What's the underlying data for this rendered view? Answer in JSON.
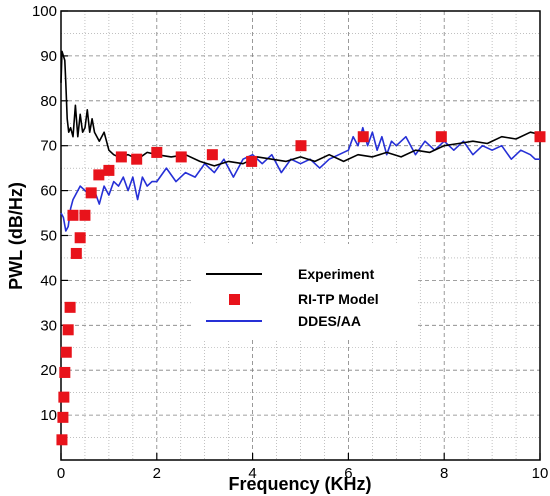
{
  "chart_data": {
    "type": "line",
    "xlabel": "Frequency (KHz)",
    "ylabel": "PWL (dB/Hz)",
    "xlim": [
      0,
      10
    ],
    "ylim": [
      0,
      100
    ],
    "x_ticks": [
      0,
      2,
      4,
      6,
      8,
      10
    ],
    "y_ticks": [
      10,
      20,
      30,
      40,
      50,
      60,
      70,
      80,
      90,
      100
    ],
    "grid": true,
    "legend_position": "center-right",
    "series": [
      {
        "name": "Experiment",
        "kind": "line",
        "color": "#000000",
        "x": [
          0.0,
          0.02,
          0.05,
          0.08,
          0.1,
          0.13,
          0.16,
          0.2,
          0.25,
          0.3,
          0.35,
          0.4,
          0.45,
          0.5,
          0.55,
          0.6,
          0.65,
          0.7,
          0.8,
          0.9,
          1.0,
          1.1,
          1.2,
          1.4,
          1.6,
          1.8,
          2.0,
          2.3,
          2.6,
          2.9,
          3.2,
          3.5,
          3.8,
          4.1,
          4.4,
          4.7,
          5.0,
          5.3,
          5.6,
          5.9,
          6.2,
          6.5,
          6.8,
          7.1,
          7.4,
          7.7,
          8.0,
          8.3,
          8.6,
          8.9,
          9.2,
          9.5,
          9.8,
          10.0
        ],
        "y": [
          84,
          91,
          90,
          89,
          84,
          76,
          73,
          74,
          72,
          79,
          72,
          77,
          73,
          74,
          78,
          73,
          76,
          73,
          71,
          73,
          69,
          68,
          67.5,
          68,
          67,
          68.5,
          68,
          67.5,
          68,
          66.5,
          65.5,
          66.5,
          66,
          67.5,
          67,
          66.5,
          67.5,
          66.5,
          68,
          66.5,
          68,
          67.5,
          68.5,
          67.5,
          69,
          68.5,
          70,
          70.5,
          71,
          70.5,
          72,
          71.5,
          73,
          72.5
        ]
      },
      {
        "name": "RI-TP Model",
        "kind": "scatter",
        "color": "#e8131b",
        "x": [
          0.02,
          0.04,
          0.06,
          0.08,
          0.11,
          0.15,
          0.19,
          0.25,
          0.32,
          0.4,
          0.5,
          0.63,
          0.79,
          1.0,
          1.26,
          1.58,
          2.0,
          2.51,
          3.16,
          3.98,
          5.01,
          6.31,
          7.94,
          10.0
        ],
        "y": [
          4.5,
          9.5,
          14,
          19.5,
          24,
          29,
          34,
          54.5,
          46,
          49.5,
          54.5,
          59.5,
          63.5,
          64.5,
          67.5,
          67,
          68.5,
          67.5,
          68,
          66.5,
          70,
          72,
          72,
          72
        ]
      },
      {
        "name": "DDES/AA",
        "kind": "line",
        "color": "#2630d6",
        "x": [
          0.0,
          0.05,
          0.1,
          0.15,
          0.2,
          0.25,
          0.3,
          0.35,
          0.4,
          0.5,
          0.6,
          0.7,
          0.8,
          0.9,
          1.0,
          1.1,
          1.2,
          1.3,
          1.4,
          1.5,
          1.6,
          1.7,
          1.8,
          1.9,
          2.0,
          2.2,
          2.4,
          2.6,
          2.8,
          3.0,
          3.2,
          3.4,
          3.6,
          3.8,
          4.0,
          4.2,
          4.4,
          4.6,
          4.8,
          5.0,
          5.2,
          5.4,
          5.6,
          5.8,
          6.0,
          6.1,
          6.2,
          6.3,
          6.4,
          6.5,
          6.6,
          6.7,
          6.8,
          6.9,
          7.0,
          7.2,
          7.4,
          7.6,
          7.8,
          8.0,
          8.2,
          8.4,
          8.6,
          8.8,
          9.0,
          9.2,
          9.4,
          9.6,
          9.8,
          9.9,
          10.0
        ],
        "y": [
          55,
          54,
          51,
          52,
          56,
          58,
          59,
          60,
          61,
          60,
          59,
          60,
          57,
          61,
          59,
          62,
          61,
          63,
          60,
          63,
          58,
          63,
          61,
          62,
          62,
          65,
          62,
          64,
          63,
          66,
          64,
          67,
          63,
          67,
          68,
          66,
          68,
          64,
          67,
          66,
          67,
          65,
          67,
          68,
          69,
          72,
          70,
          74,
          70,
          73,
          69,
          72,
          68,
          71,
          70,
          72,
          68,
          71,
          69,
          71,
          69,
          71,
          68,
          70,
          69,
          70,
          67,
          69,
          68,
          67,
          67
        ]
      }
    ]
  }
}
